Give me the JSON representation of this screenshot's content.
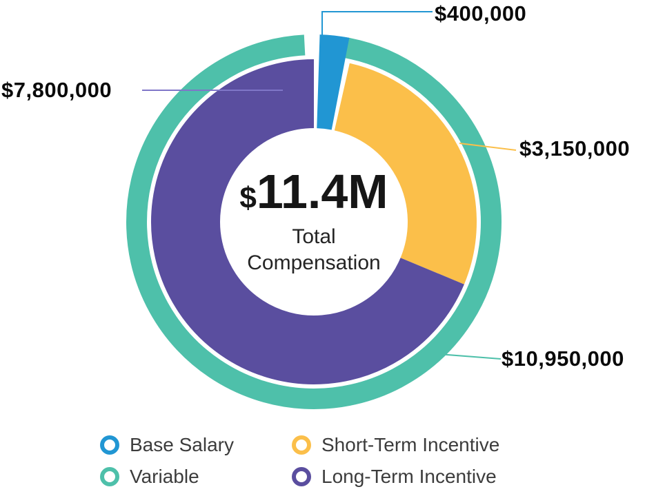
{
  "chart_data": {
    "type": "pie",
    "subtype": "donut-with-outer-ring",
    "title": "",
    "center": {
      "currency_symbol": "$",
      "value_text": "11.4M",
      "sub_line1": "Total",
      "sub_line2": "Compensation"
    },
    "slices": [
      {
        "name": "Base Salary",
        "value": 400000,
        "label": "$400,000",
        "color": "#2196d3"
      },
      {
        "name": "Short-Term Incentive",
        "value": 3150000,
        "label": "$3,150,000",
        "color": "#fbbf4a"
      },
      {
        "name": "Long-Term Incentive",
        "value": 7800000,
        "label": "$7,800,000",
        "color": "#5a4e9f"
      }
    ],
    "outer_ring": {
      "name": "Variable",
      "value": 10950000,
      "label": "$10,950,000",
      "color": "#4ec0aa"
    },
    "legend": [
      {
        "label": "Base Salary",
        "color": "#2196d3"
      },
      {
        "label": "Short-Term Incentive",
        "color": "#fbbf4a"
      },
      {
        "label": "Variable",
        "color": "#4ec0aa"
      },
      {
        "label": "Long-Term Incentive",
        "color": "#5a4e9f"
      }
    ],
    "legend_position": "bottom",
    "accent_colors": {
      "blue": "#2196d3",
      "yellow": "#fbbf4a",
      "teal": "#4ec0aa",
      "purple": "#5a4e9f"
    }
  }
}
